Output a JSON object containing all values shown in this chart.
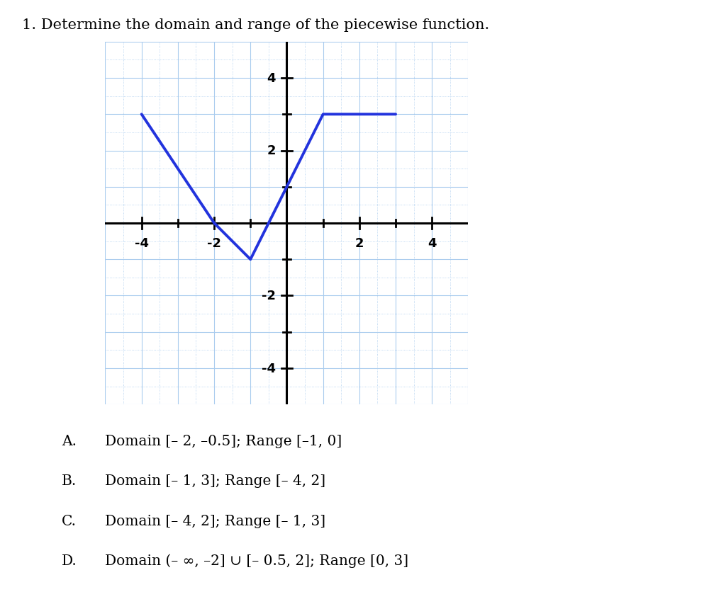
{
  "title": "1. Determine the domain and range of the piecewise function.",
  "title_fontsize": 15,
  "line_color": "#2233dd",
  "line_width": 2.8,
  "piecewise_x": [
    -4,
    -2,
    -1,
    0,
    1,
    3
  ],
  "piecewise_y": [
    3,
    0,
    -1,
    1,
    3,
    3
  ],
  "xlim": [
    -5,
    5
  ],
  "ylim": [
    -5,
    5
  ],
  "xticks_labeled": [
    -4,
    -2,
    2,
    4
  ],
  "yticks_labeled": [
    -4,
    -2,
    2,
    4
  ],
  "grid_dotted_color": "#aaccee",
  "grid_solid_color": "#99bbdd",
  "axis_color": "#000000",
  "background_color": "#ffffff",
  "plot_bg_color": "#ddeeff",
  "choices": [
    [
      "A.",
      "Domain [– 2, –0.5]; Range [–1, 0]"
    ],
    [
      "B.",
      "Domain [– 1, 3]; Range [– 4, 2]"
    ],
    [
      "C.",
      "Domain [– 4, 2]; Range [– 1, 3]"
    ],
    [
      "D.",
      "Domain (– ∞, –2] ∪ [– 0.5, 2]; Range [0, 3]"
    ]
  ],
  "choices_fontsize": 14.5
}
